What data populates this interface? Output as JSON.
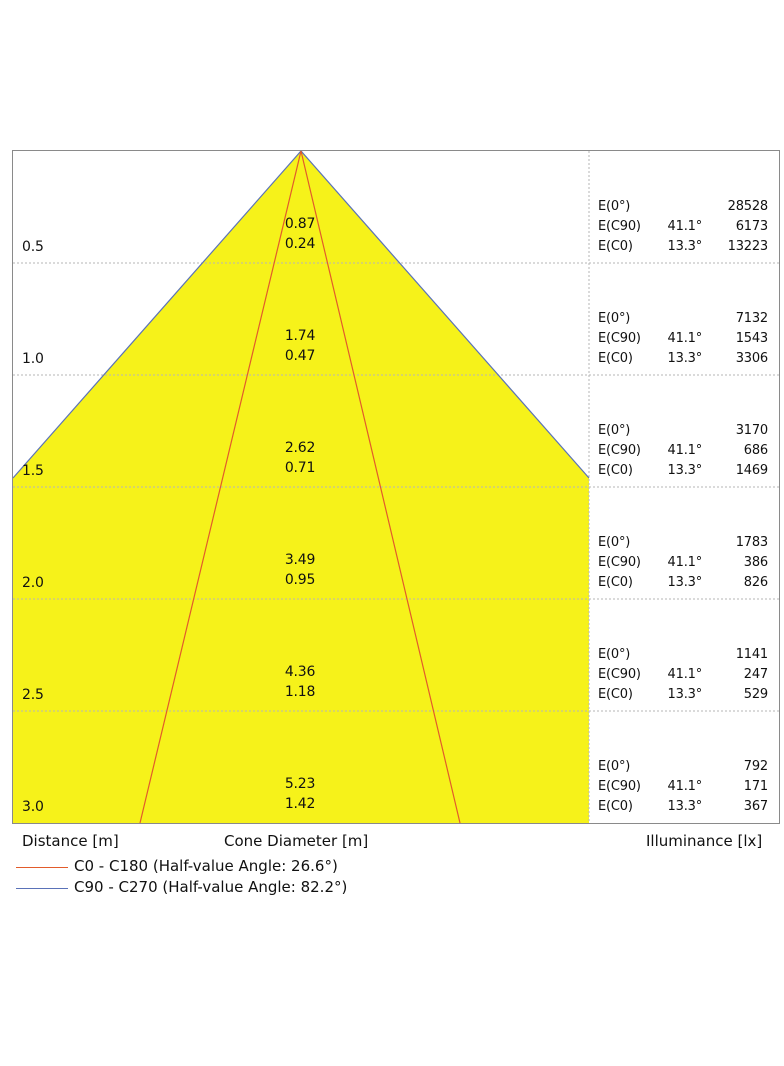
{
  "diagram": {
    "cone_fill": "#f6f21a",
    "grid_color": "#b5b5b5",
    "c0_color": "#e25b2b",
    "c90_color": "#5a72b8",
    "rows": [
      {
        "distance": "0.5",
        "diam_c90": "0.87",
        "diam_c0": "0.24",
        "e0_label": "E(0°)",
        "e0_value": "28528",
        "ec90_label": "E(C90)",
        "ec90_angle": "41.1°",
        "ec90_value": "6173",
        "ec0_label": "E(C0)",
        "ec0_angle": "13.3°",
        "ec0_value": "13223"
      },
      {
        "distance": "1.0",
        "diam_c90": "1.74",
        "diam_c0": "0.47",
        "e0_label": "E(0°)",
        "e0_value": "7132",
        "ec90_label": "E(C90)",
        "ec90_angle": "41.1°",
        "ec90_value": "1543",
        "ec0_label": "E(C0)",
        "ec0_angle": "13.3°",
        "ec0_value": "3306"
      },
      {
        "distance": "1.5",
        "diam_c90": "2.62",
        "diam_c0": "0.71",
        "e0_label": "E(0°)",
        "e0_value": "3170",
        "ec90_label": "E(C90)",
        "ec90_angle": "41.1°",
        "ec90_value": "686",
        "ec0_label": "E(C0)",
        "ec0_angle": "13.3°",
        "ec0_value": "1469"
      },
      {
        "distance": "2.0",
        "diam_c90": "3.49",
        "diam_c0": "0.95",
        "e0_label": "E(0°)",
        "e0_value": "1783",
        "ec90_label": "E(C90)",
        "ec90_angle": "41.1°",
        "ec90_value": "386",
        "ec0_label": "E(C0)",
        "ec0_angle": "13.3°",
        "ec0_value": "826"
      },
      {
        "distance": "2.5",
        "diam_c90": "4.36",
        "diam_c0": "1.18",
        "e0_label": "E(0°)",
        "e0_value": "1141",
        "ec90_label": "E(C90)",
        "ec90_angle": "41.1°",
        "ec90_value": "247",
        "ec0_label": "E(C0)",
        "ec0_angle": "13.3°",
        "ec0_value": "529"
      },
      {
        "distance": "3.0",
        "diam_c90": "5.23",
        "diam_c0": "1.42",
        "e0_label": "E(0°)",
        "e0_value": "792",
        "ec90_label": "E(C90)",
        "ec90_angle": "41.1°",
        "ec90_value": "171",
        "ec0_label": "E(C0)",
        "ec0_angle": "13.3°",
        "ec0_value": "367"
      }
    ],
    "axis_labels": {
      "distance": "Distance [m]",
      "cone_diameter": "Cone Diameter [m]",
      "illuminance": "Illuminance [lx]"
    },
    "legend": [
      {
        "text": "C0 - C180 (Half-value Angle: 26.6°)",
        "color": "#e25b2b"
      },
      {
        "text": "C90 - C270 (Half-value Angle: 82.2°)",
        "color": "#5a72b8"
      }
    ]
  }
}
